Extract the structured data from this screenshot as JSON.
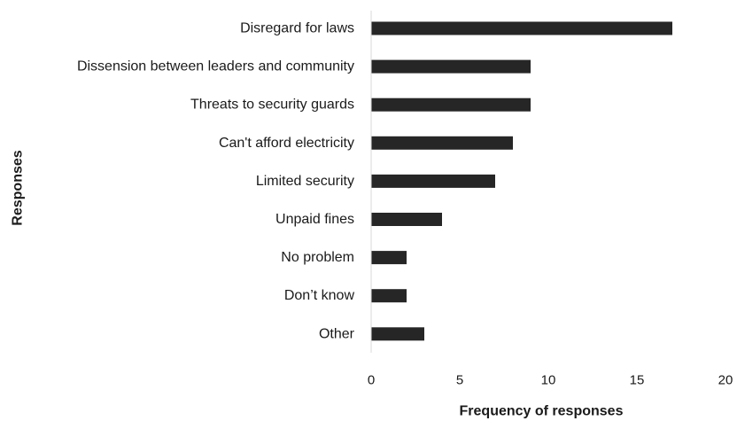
{
  "chart_data": {
    "type": "bar",
    "orientation": "horizontal",
    "categories": [
      "Disregard for laws",
      "Dissension between leaders and community",
      "Threats to security guards",
      "Can't afford electricity",
      "Limited security",
      "Unpaid fines",
      "No problem",
      "Don’t know",
      "Other"
    ],
    "values": [
      17,
      9,
      9,
      8,
      7,
      4,
      2,
      2,
      3
    ],
    "xlabel": "Frequency of responses",
    "ylabel": "Responses",
    "xlim": [
      0,
      20
    ],
    "xticks": [
      0,
      5,
      10,
      15,
      20
    ],
    "grid": false,
    "legend": "none",
    "bar_color": "#262626",
    "axis_color": "#d9d9d9"
  }
}
